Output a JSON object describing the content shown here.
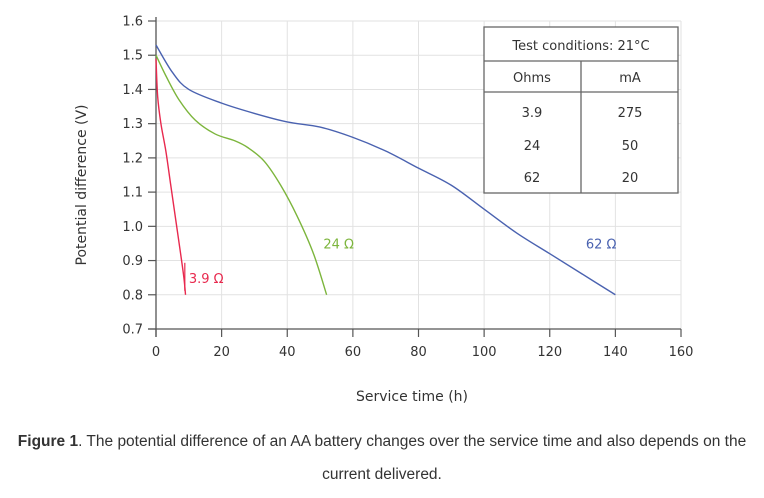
{
  "chart_data": {
    "type": "line",
    "title": "",
    "xlabel": "Service time (h)",
    "ylabel": "Potential difference (V)",
    "xlim": [
      0,
      160
    ],
    "ylim": [
      0.7,
      1.6
    ],
    "x_ticks": [
      "0",
      "20",
      "40",
      "60",
      "80",
      "100",
      "120",
      "140",
      "160"
    ],
    "y_ticks": [
      "0.7",
      "0.8",
      "0.9",
      "1.0",
      "1.1",
      "1.2",
      "1.3",
      "1.4",
      "1.5",
      "1.6"
    ],
    "grid": true,
    "series": [
      {
        "name": "3.9 Ω",
        "color": "#e8294e",
        "points": [
          [
            0,
            1.49
          ],
          [
            0.5,
            1.38
          ],
          [
            1.5,
            1.3
          ],
          [
            3,
            1.22
          ],
          [
            4.5,
            1.12
          ],
          [
            6,
            1.02
          ],
          [
            7.5,
            0.92
          ],
          [
            8.5,
            0.85
          ],
          [
            9,
            0.8
          ]
        ]
      },
      {
        "name": "24 Ω",
        "color": "#7cb53c",
        "points": [
          [
            0,
            1.5
          ],
          [
            3,
            1.44
          ],
          [
            7,
            1.37
          ],
          [
            12,
            1.31
          ],
          [
            18,
            1.27
          ],
          [
            24,
            1.25
          ],
          [
            28,
            1.23
          ],
          [
            33,
            1.19
          ],
          [
            38,
            1.12
          ],
          [
            43,
            1.03
          ],
          [
            48,
            0.92
          ],
          [
            52,
            0.8
          ]
        ]
      },
      {
        "name": "62 Ω",
        "color": "#4a62b0",
        "points": [
          [
            0,
            1.53
          ],
          [
            5,
            1.45
          ],
          [
            10,
            1.4
          ],
          [
            20,
            1.36
          ],
          [
            30,
            1.33
          ],
          [
            40,
            1.305
          ],
          [
            50,
            1.29
          ],
          [
            60,
            1.26
          ],
          [
            70,
            1.22
          ],
          [
            80,
            1.17
          ],
          [
            90,
            1.12
          ],
          [
            100,
            1.05
          ],
          [
            110,
            0.98
          ],
          [
            120,
            0.92
          ],
          [
            130,
            0.86
          ],
          [
            140,
            0.8
          ]
        ]
      }
    ],
    "curve_labels": [
      {
        "text": "3.9 Ω",
        "x": 10,
        "y": 0.835
      },
      {
        "text": "24 Ω",
        "x": 51,
        "y": 0.935
      },
      {
        "text": "62 Ω",
        "x": 131,
        "y": 0.935
      }
    ],
    "table": {
      "title": "Test conditions: 21°C",
      "headers": [
        "Ohms",
        "mA"
      ],
      "rows": [
        [
          "3.9",
          "275"
        ],
        [
          "24",
          "50"
        ],
        [
          "62",
          "20"
        ]
      ]
    }
  },
  "caption": {
    "label": "Figure 1",
    "text": ". The potential difference of an AA battery changes over the service time and also depends on the current delivered."
  }
}
